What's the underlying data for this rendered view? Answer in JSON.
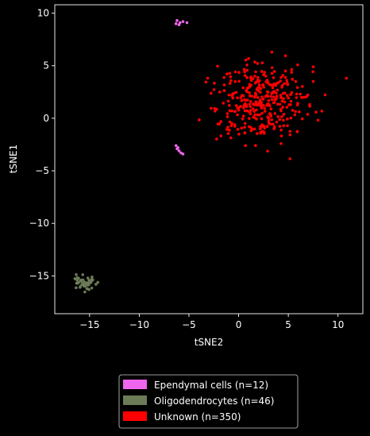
{
  "chart_data": {
    "type": "scatter",
    "title": "",
    "xlabel": "tSNE2",
    "ylabel": "tSNE1",
    "xlim": [
      -18.5,
      12.5
    ],
    "ylim": [
      -18.6,
      10.8
    ],
    "xticks": [
      -15,
      -10,
      -5,
      0,
      5,
      10
    ],
    "yticks": [
      10,
      5,
      0,
      -5,
      -10,
      -15
    ],
    "xtick_labels": [
      "−15",
      "−10",
      "−5",
      "0",
      "5",
      "10"
    ],
    "ytick_labels": [
      "10",
      "5",
      "0",
      "−5",
      "−10",
      "−15"
    ],
    "grid": false,
    "legend_position": "below",
    "background": "#000000",
    "series": [
      {
        "name": "Ependymal cells (n=12)",
        "color": "#ee66ee",
        "points": [
          [
            -6.2,
            9.3
          ],
          [
            -5.9,
            9.1
          ],
          [
            -5.6,
            9.2
          ],
          [
            -6.0,
            8.9
          ],
          [
            -6.3,
            9.0
          ],
          [
            -5.2,
            9.1
          ],
          [
            -6.3,
            -2.6
          ],
          [
            -6.2,
            -2.9
          ],
          [
            -6.0,
            -3.1
          ],
          [
            -5.8,
            -3.3
          ],
          [
            -5.6,
            -3.4
          ],
          [
            -6.1,
            -2.8
          ]
        ]
      },
      {
        "name": "Oligodendrocytes (n=46)",
        "color": "#6b7b57",
        "generated": {
          "count": 46,
          "center": [
            -15.5,
            -15.7
          ],
          "spread": [
            0.9,
            0.8
          ],
          "seed": 7
        }
      },
      {
        "name": "Unknown (n=350)",
        "color": "#ff0000",
        "generated": {
          "count": 350,
          "center": [
            2.4,
            1.6
          ],
          "spread": [
            4.4,
            3.7
          ],
          "seed": 42
        }
      }
    ]
  }
}
